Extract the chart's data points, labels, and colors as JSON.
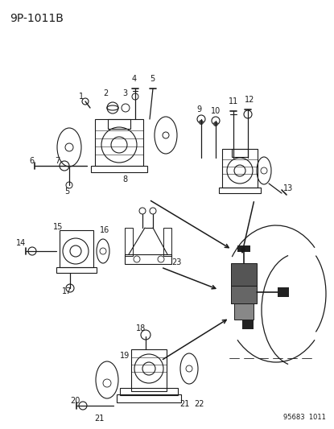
{
  "title": "9P-1011B",
  "footer": "95683  1011",
  "bg_color": "#ffffff",
  "line_color": "#1a1a1a",
  "text_color": "#1a1a1a",
  "title_fontsize": 10,
  "label_fontsize": 7,
  "footer_fontsize": 6,
  "figsize": [
    4.15,
    5.33
  ],
  "dpi": 100
}
